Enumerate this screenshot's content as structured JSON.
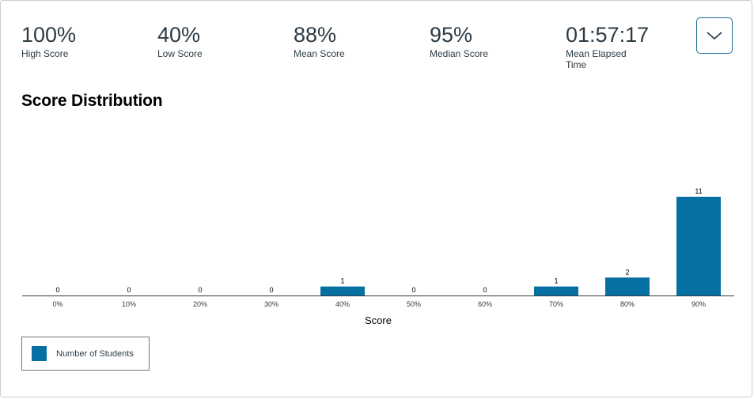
{
  "stats": [
    {
      "value": "100%",
      "label": "High Score"
    },
    {
      "value": "40%",
      "label": "Low Score"
    },
    {
      "value": "88%",
      "label": "Mean Score"
    },
    {
      "value": "95%",
      "label": "Median Score"
    },
    {
      "value": "01:57:17",
      "label": "Mean Elapsed Time"
    }
  ],
  "toggle": {
    "icon": "chevron-down-icon"
  },
  "section_title": "Score Distribution",
  "colors": {
    "bar": "#0770a3",
    "axis": "#2d3b45",
    "text": "#2d3b45",
    "accent": "#1b6d99"
  },
  "chart_data": {
    "type": "bar",
    "categories": [
      "0%",
      "10%",
      "20%",
      "30%",
      "40%",
      "50%",
      "60%",
      "70%",
      "80%",
      "90%"
    ],
    "series": [
      {
        "name": "Number of Students",
        "values": [
          0,
          0,
          0,
          0,
          1,
          0,
          0,
          1,
          2,
          11
        ]
      }
    ],
    "title": "",
    "xlabel": "Score",
    "ylabel": "",
    "ylim": [
      0,
      11
    ],
    "grid": false,
    "legend": "bottom-left"
  }
}
